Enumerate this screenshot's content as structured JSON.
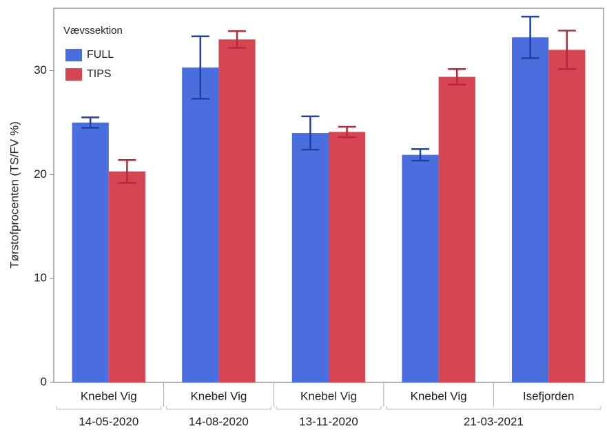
{
  "chart_data": {
    "type": "bar",
    "y_label": "Tørstofprocenten (TS/FV %)",
    "legend_title": "Vævssektion",
    "legend": "top-left",
    "categories": [
      "Knebel Vig",
      "Knebel Vig",
      "Knebel Vig",
      "Knebel Vig",
      "Isefjorden"
    ],
    "dates": [
      "14-05-2020",
      "14-08-2020",
      "13-11-2020",
      "21-03-2021",
      null
    ],
    "series": [
      {
        "name": "FULL",
        "color": "#4a6ede",
        "error_color": "#1f3ea6",
        "values": [
          25.0,
          30.3,
          24.0,
          21.9,
          33.2
        ],
        "errors": [
          0.5,
          3.0,
          1.6,
          0.55,
          2.0
        ]
      },
      {
        "name": "TIPS",
        "color": "#d84552",
        "error_color": "#b22a3a",
        "values": [
          20.3,
          33.0,
          24.1,
          29.4,
          32.0
        ],
        "errors": [
          1.1,
          0.8,
          0.5,
          0.75,
          1.85
        ]
      }
    ],
    "ylim": [
      0,
      36
    ],
    "yticks": [
      0,
      10,
      20,
      30
    ],
    "grid": false
  }
}
